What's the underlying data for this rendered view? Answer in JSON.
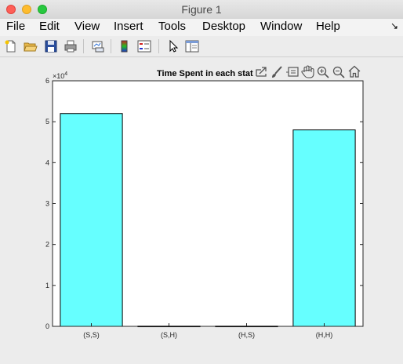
{
  "window": {
    "title": "Figure 1"
  },
  "menubar": {
    "items": [
      "File",
      "Edit",
      "View",
      "Insert",
      "Tools",
      "Desktop",
      "Window",
      "Help"
    ],
    "overflow": "↘"
  },
  "toolbar": {
    "icons": [
      "new-figure-icon",
      "open-file-icon",
      "save-icon",
      "print-icon",
      "link-plot-icon",
      "colorbar-icon",
      "legend-icon",
      "pointer-icon",
      "property-inspector-icon"
    ]
  },
  "axes_toolbar": {
    "icons": [
      "export-icon",
      "brush-icon",
      "data-tips-icon",
      "pan-icon",
      "zoom-in-icon",
      "zoom-out-icon",
      "home-icon"
    ]
  },
  "colors": {
    "bar_fill": "#66ffff",
    "bar_edge": "#000000",
    "axes_bg": "#ffffff"
  },
  "chart_data": {
    "type": "bar",
    "title": "Time Spent in each stat",
    "categories": [
      "(S,S)",
      "(S,H)",
      "(H,S)",
      "(H,H)"
    ],
    "values": [
      52000,
      50,
      50,
      48000
    ],
    "yticks": [
      "0",
      "1",
      "2",
      "3",
      "4",
      "5",
      "6"
    ],
    "ylim": [
      0,
      60000
    ],
    "y_exponent_base": "×10",
    "y_exponent": "4",
    "grid": false
  }
}
